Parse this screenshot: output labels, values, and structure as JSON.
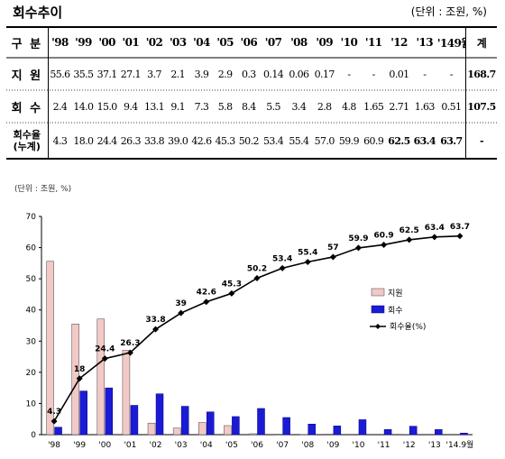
{
  "title": "회수추이",
  "unit_top": "(단위 : 조원, %)",
  "unit_chart": "(단위 : 조원, %)",
  "table": {
    "header": [
      "구 분",
      "'98",
      "'99",
      "'00",
      "'01",
      "'02",
      "'03",
      "'04",
      "'05",
      "'06",
      "'07",
      "'08",
      "'09",
      "'10",
      "'11",
      "'12",
      "'13",
      "'149월",
      "계"
    ],
    "rows": [
      {
        "label": "지 원",
        "cells": [
          "55.6",
          "35.5",
          "37.1",
          "27.1",
          "3.7",
          "2.1",
          "3.9",
          "2.9",
          "0.3",
          "0.14",
          "0.06",
          "0.17",
          "-",
          "-",
          "0.01",
          "-",
          "-",
          "168.7"
        ]
      },
      {
        "label": "회 수",
        "cells": [
          "2.4",
          "14.0",
          "15.0",
          "9.4",
          "13.1",
          "9.1",
          "7.3",
          "5.8",
          "8.4",
          "5.5",
          "3.4",
          "2.8",
          "4.8",
          "1.65",
          "2.71",
          "1.63",
          "0.51",
          "107.5"
        ]
      },
      {
        "label": "회수율 (누계)",
        "cells": [
          "4.3",
          "18.0",
          "24.4",
          "26.3",
          "33.8",
          "39.0",
          "42.6",
          "45.3",
          "50.2",
          "53.4",
          "55.4",
          "57.0",
          "59.9",
          "60.9",
          "62.5",
          "63.4",
          "63.7",
          "-"
        ]
      }
    ]
  },
  "chart_data": {
    "type": "bar",
    "categories": [
      "'98",
      "'99",
      "'00",
      "'01",
      "'02",
      "'03",
      "'04",
      "'05",
      "'06",
      "'07",
      "'08",
      "'09",
      "'10",
      "'11",
      "'12",
      "'13",
      "'14.9월"
    ],
    "series": [
      {
        "name": "지원",
        "kind": "bar",
        "color": "#f2c9c6",
        "values": [
          55.6,
          35.5,
          37.1,
          27.1,
          3.7,
          2.1,
          3.9,
          2.9,
          0.3,
          0.14,
          0.06,
          0.17,
          0,
          0,
          0.01,
          0,
          0
        ]
      },
      {
        "name": "회수",
        "kind": "bar",
        "color": "#1b1bd6",
        "values": [
          2.4,
          14.0,
          15.0,
          9.4,
          13.1,
          9.1,
          7.3,
          5.8,
          8.4,
          5.5,
          3.4,
          2.8,
          4.8,
          1.65,
          2.71,
          1.63,
          0.51
        ]
      },
      {
        "name": "회수율(%)",
        "kind": "line",
        "color": "#000000",
        "values": [
          4.3,
          18.0,
          24.4,
          26.3,
          33.8,
          39.0,
          42.6,
          45.3,
          50.2,
          53.4,
          55.4,
          57.0,
          59.9,
          60.9,
          62.5,
          63.4,
          63.7
        ]
      }
    ],
    "yticks": [
      "0",
      "10",
      "20",
      "30",
      "40",
      "50",
      "60",
      "70"
    ],
    "ylim": [
      0,
      70
    ],
    "grid": false,
    "legend_position": "center-right"
  }
}
